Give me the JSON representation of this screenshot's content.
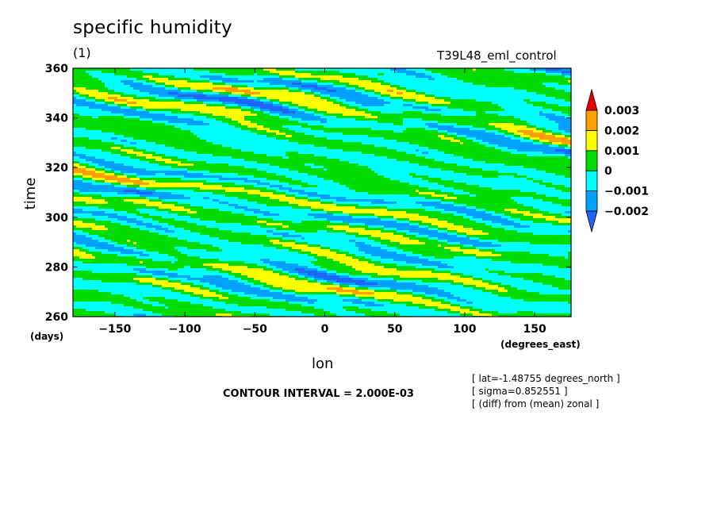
{
  "header": {
    "title": "specific humidity",
    "subtitle": "(1)",
    "run_name": "T39L48_eml_control"
  },
  "footer": {
    "contour_interval": "CONTOUR INTERVAL = 2.000E-03",
    "meta": [
      "[ lat=-1.48755 degrees_north ]",
      "[ sigma=0.852551 ]",
      "[ (diff) from (mean) zonal ]"
    ]
  },
  "chart_data": {
    "type": "heatmap",
    "title": "specific humidity",
    "xlabel": "lon",
    "ylabel": "time",
    "x_units": "(degrees_east)",
    "y_units": "(days)",
    "xlim": [
      -180,
      176
    ],
    "ylim": [
      260,
      360
    ],
    "x_ticks": [
      -150,
      -100,
      -50,
      0,
      50,
      100,
      150
    ],
    "x_tick_labels": [
      "-150",
      "-100",
      "-50",
      "0",
      "50",
      "100",
      "150"
    ],
    "y_ticks": [
      260,
      280,
      300,
      320,
      340,
      360
    ],
    "y_tick_labels": [
      "260",
      "280",
      "300",
      "320",
      "340",
      "360"
    ],
    "colorbar": {
      "levels": [
        -0.002,
        -0.001,
        0,
        0.001,
        0.002,
        0.003
      ],
      "level_labels": [
        "-0.002",
        "-0.001",
        "0",
        "0.001",
        "0.002",
        "0.003"
      ],
      "colors": [
        "#1e64ff",
        "#00a0ff",
        "#00ffff",
        "#00dc00",
        "#ffff00",
        "#ffa000",
        "#e60000"
      ],
      "extend": "both"
    },
    "contour_interval": 0.002,
    "pattern": "westward-propagating diagonal anomaly bands (slope toward lower longitude with increasing time)"
  }
}
